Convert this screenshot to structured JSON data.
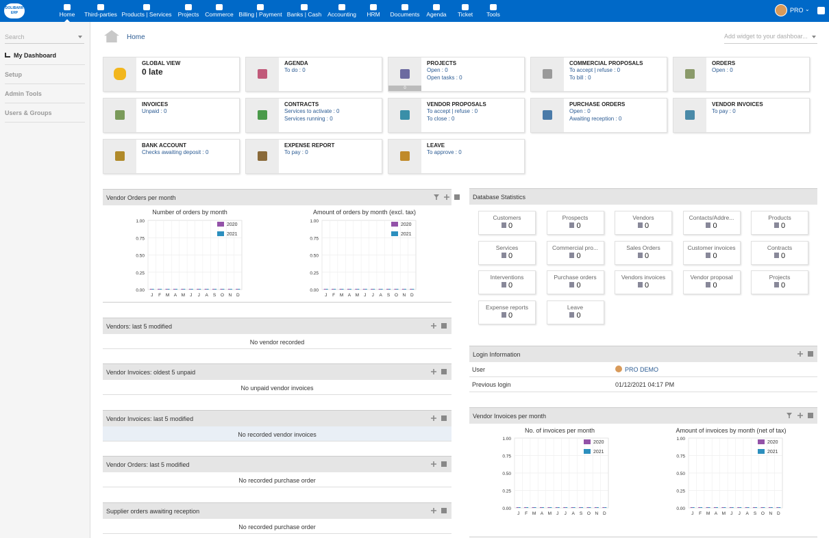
{
  "nav": {
    "logo_lines": [
      "DOLIBARR",
      "ERP"
    ],
    "items": [
      "Home",
      "Third-parties",
      "Products | Services",
      "Projects",
      "Commerce",
      "Billing | Payment",
      "Banks | Cash",
      "Accounting",
      "HRM",
      "Documents",
      "Agenda",
      "Ticket",
      "Tools"
    ],
    "user": "PRO"
  },
  "sidebar": {
    "search_placeholder": "Search",
    "items": [
      "My Dashboard",
      "Setup",
      "Admin Tools",
      "Users & Groups"
    ]
  },
  "breadcrumb": "Home",
  "widget_select": "Add widget to your dashboar...",
  "boxes": [
    {
      "title": "GLOBAL VIEW",
      "big": "0 late",
      "lines": []
    },
    {
      "title": "AGENDA",
      "lines": [
        "To do : 0"
      ]
    },
    {
      "title": "PROJECTS",
      "lines": [
        "Open : 0",
        "Open tasks : 0"
      ],
      "bar_value": "0"
    },
    {
      "title": "COMMERCIAL PROPOSALS",
      "lines": [
        "To accept | refuse : 0",
        "To bill : 0"
      ]
    },
    {
      "title": "ORDERS",
      "lines": [
        "Open : 0"
      ]
    },
    {
      "title": "INVOICES",
      "lines": [
        "Unpaid : 0"
      ]
    },
    {
      "title": "CONTRACTS",
      "lines": [
        "Services to activate : 0",
        "Services running : 0"
      ]
    },
    {
      "title": "VENDOR PROPOSALS",
      "lines": [
        "To accept | refuse : 0",
        "To close : 0"
      ]
    },
    {
      "title": "PURCHASE ORDERS",
      "lines": [
        "Open : 0",
        "Awaiting reception : 0"
      ]
    },
    {
      "title": "VENDOR INVOICES",
      "lines": [
        "To pay : 0"
      ]
    },
    {
      "title": "BANK ACCOUNT",
      "lines": [
        "Checks awaiting deposit : 0"
      ]
    },
    {
      "title": "EXPENSE REPORT",
      "lines": [
        "To pay : 0"
      ]
    },
    {
      "title": "LEAVE",
      "lines": [
        "To approve : 0"
      ]
    }
  ],
  "colors": {
    "nav": "#0069c8",
    "legend_2020": "#9352a8",
    "legend_2021": "#2c8fbe"
  },
  "vendor_orders_panel": {
    "title": "Vendor Orders per month",
    "chart1_title": "Number of orders by month",
    "chart2_title": "Amount of orders by month (excl. tax)"
  },
  "vendor_invoices_panel": {
    "title": "Vendor Invoices per month",
    "chart1_title": "No. of invoices per month",
    "chart2_title": "Amount of invoices by month (net of tax)"
  },
  "chart_data": [
    {
      "type": "bar",
      "title": "Number of orders by month",
      "categories": [
        "J",
        "F",
        "M",
        "A",
        "M",
        "J",
        "J",
        "A",
        "S",
        "O",
        "N",
        "D"
      ],
      "series": [
        {
          "name": "2020",
          "values": [
            0,
            0,
            0,
            0,
            0,
            0,
            0,
            0,
            0,
            0,
            0,
            0
          ]
        },
        {
          "name": "2021",
          "values": [
            0,
            0,
            0,
            0,
            0,
            0,
            0,
            0,
            0,
            0,
            0,
            0
          ]
        }
      ],
      "yticks": [
        "1.00",
        "0.75",
        "0.50",
        "0.25",
        "0.00"
      ],
      "ylim": [
        0,
        1
      ],
      "legend": "top-right",
      "grid": true
    },
    {
      "type": "bar",
      "title": "Amount of orders by month (excl. tax)",
      "categories": [
        "J",
        "F",
        "M",
        "A",
        "M",
        "J",
        "J",
        "A",
        "S",
        "O",
        "N",
        "D"
      ],
      "series": [
        {
          "name": "2020",
          "values": [
            0,
            0,
            0,
            0,
            0,
            0,
            0,
            0,
            0,
            0,
            0,
            0
          ]
        },
        {
          "name": "2021",
          "values": [
            0,
            0,
            0,
            0,
            0,
            0,
            0,
            0,
            0,
            0,
            0,
            0
          ]
        }
      ],
      "yticks": [
        "1.00",
        "0.75",
        "0.50",
        "0.25",
        "0.00"
      ],
      "ylim": [
        0,
        1
      ],
      "legend": "top-right",
      "grid": true
    },
    {
      "type": "bar",
      "title": "No. of invoices per month",
      "categories": [
        "J",
        "F",
        "M",
        "A",
        "M",
        "J",
        "J",
        "A",
        "S",
        "O",
        "N",
        "D"
      ],
      "series": [
        {
          "name": "2020",
          "values": [
            0,
            0,
            0,
            0,
            0,
            0,
            0,
            0,
            0,
            0,
            0,
            0
          ]
        },
        {
          "name": "2021",
          "values": [
            0,
            0,
            0,
            0,
            0,
            0,
            0,
            0,
            0,
            0,
            0,
            0
          ]
        }
      ],
      "yticks": [
        "1.00",
        "0.75",
        "0.50",
        "0.25",
        "0.00"
      ],
      "ylim": [
        0,
        1
      ],
      "legend": "top-right",
      "grid": true
    },
    {
      "type": "bar",
      "title": "Amount of invoices by month (net of tax)",
      "categories": [
        "J",
        "F",
        "M",
        "A",
        "M",
        "J",
        "J",
        "A",
        "S",
        "O",
        "N",
        "D"
      ],
      "series": [
        {
          "name": "2020",
          "values": [
            0,
            0,
            0,
            0,
            0,
            0,
            0,
            0,
            0,
            0,
            0,
            0
          ]
        },
        {
          "name": "2021",
          "values": [
            0,
            0,
            0,
            0,
            0,
            0,
            0,
            0,
            0,
            0,
            0,
            0
          ]
        }
      ],
      "yticks": [
        "1.00",
        "0.75",
        "0.50",
        "0.25",
        "0.00"
      ],
      "ylim": [
        0,
        1
      ],
      "legend": "top-right",
      "grid": true
    }
  ],
  "lists": [
    {
      "title": "Vendors: last 5 modified",
      "empty": "No vendor recorded"
    },
    {
      "title": "Vendor Invoices: oldest 5 unpaid",
      "empty": "No unpaid vendor invoices"
    },
    {
      "title": "Vendor Invoices: last 5 modified",
      "empty": "No recorded vendor invoices"
    },
    {
      "title": "Vendor Orders: last 5 modified",
      "empty": "No recorded purchase order"
    },
    {
      "title": "Supplier orders awaiting reception",
      "empty": "No recorded purchase order"
    }
  ],
  "db_stats": {
    "title": "Database Statistics",
    "items": [
      {
        "label": "Customers",
        "value": "0"
      },
      {
        "label": "Prospects",
        "value": "0"
      },
      {
        "label": "Vendors",
        "value": "0"
      },
      {
        "label": "Contacts/Addre...",
        "value": "0"
      },
      {
        "label": "Products",
        "value": "0"
      },
      {
        "label": "Services",
        "value": "0"
      },
      {
        "label": "Commercial pro...",
        "value": "0"
      },
      {
        "label": "Sales Orders",
        "value": "0"
      },
      {
        "label": "Customer invoices",
        "value": "0"
      },
      {
        "label": "Contracts",
        "value": "0"
      },
      {
        "label": "Interventions",
        "value": "0"
      },
      {
        "label": "Purchase orders",
        "value": "0"
      },
      {
        "label": "Vendors invoices",
        "value": "0"
      },
      {
        "label": "Vendor proposal",
        "value": "0"
      },
      {
        "label": "Projects",
        "value": "0"
      },
      {
        "label": "Expense reports",
        "value": "0"
      },
      {
        "label": "Leave",
        "value": "0"
      }
    ]
  },
  "login": {
    "title": "Login Information",
    "user_label": "User",
    "user_value": "PRO DEMO",
    "prev_label": "Previous login",
    "prev_value": "01/12/2021 04:17 PM"
  }
}
